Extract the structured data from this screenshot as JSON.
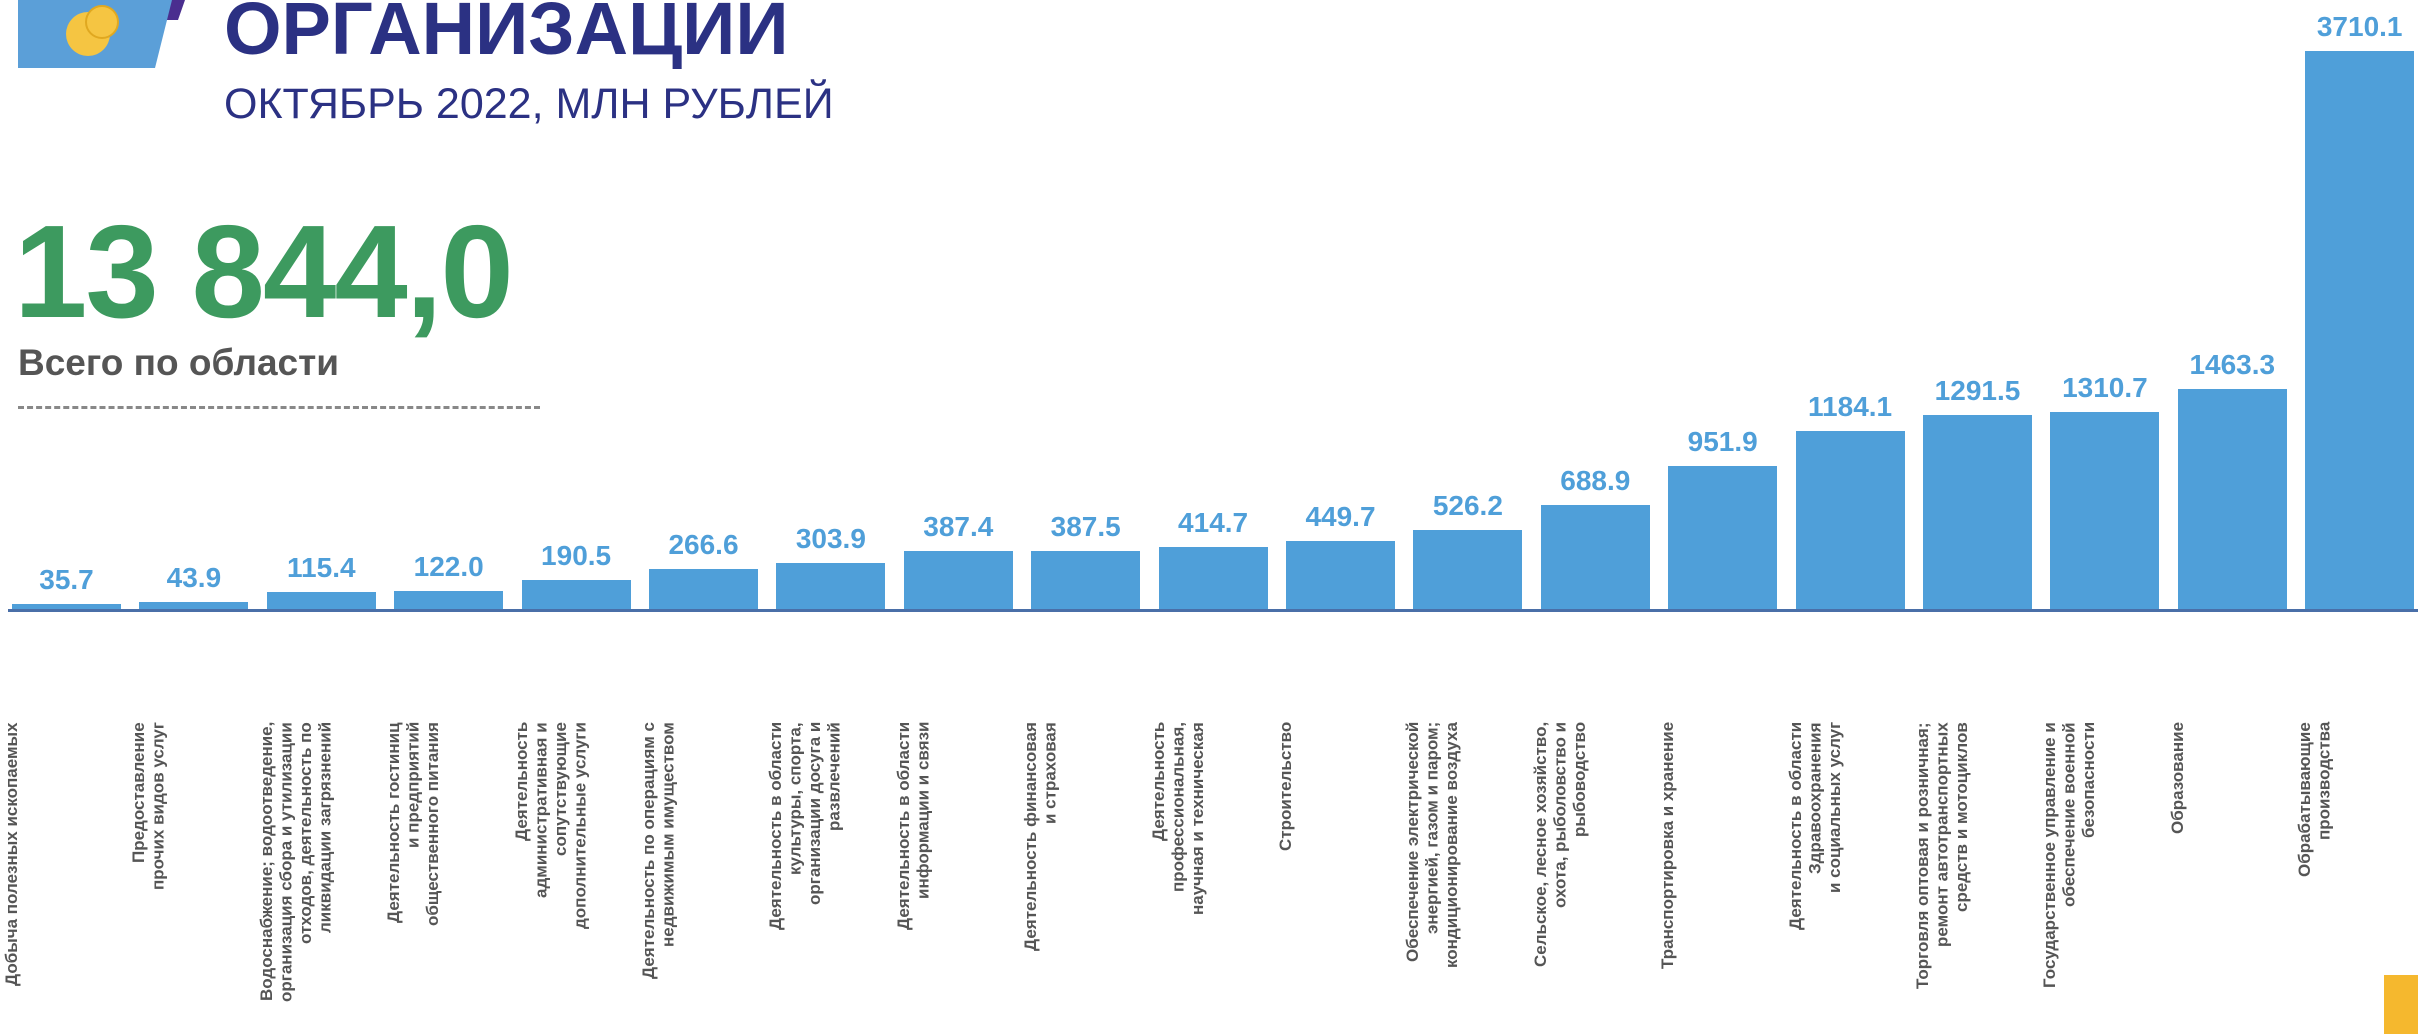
{
  "header": {
    "title": "ОРГАНИЗАЦИЙ",
    "subtitle": "ОКТЯБРЬ 2022, МЛН РУБЛЕЙ",
    "total": "13 844,0",
    "total_label": "Всего по области"
  },
  "chart_data": {
    "type": "bar",
    "color": "#4f9fd9",
    "categories": [
      "Добыча полезных ископаемых",
      "Предоставление\nпрочих видов услуг",
      "Водоснабжение; водоотведение,\nорганизация сбора и утилизации\nотходов, деятельность по\nликвидации загрязнений",
      "Деятельность гостиниц\nи предприятий\nобщественного питания",
      "Деятельность\nадминистративная и\nсопутствующие\nдополнительные услуги",
      "Деятельность по операциям с\nнедвижимым имуществом",
      "Деятельность в области\nкультуры, спорта,\nорганизации досуга и\nразвлечений",
      "Деятельность в области\nинформации и связи",
      "Деятельность финансовая\nи страховая",
      "Деятельность\nпрофессиональная,\nнаучная и техническая",
      "Строительство",
      "Обеспечение электрической\nэнергией, газом и паром;\nкондиционирование воздуха",
      "Сельское, лесное хозяйство,\nохота, рыболовство и\nрыбоводство",
      "Транспортировка и хранение",
      "Деятельность в области\nЗдравоохранения\nи социальных услуг",
      "Торговля оптовая и розничная;\nремонт автотранспортных\nсредств и мотоциклов",
      "Государственное управление и\nобеспечение военной\nбезопасности",
      "Образование",
      "Обрабатывающие\nпроизводства"
    ],
    "values": [
      35.7,
      43.9,
      115.4,
      122.0,
      190.5,
      266.6,
      303.9,
      387.4,
      387.5,
      414.7,
      449.7,
      526.2,
      688.9,
      951.9,
      1184.1,
      1291.5,
      1310.7,
      1463.3,
      3710.1
    ],
    "value_labels": [
      "35.7",
      "43.9",
      "115.4",
      "122.0",
      "190.5",
      "266.6",
      "303.9",
      "387.4",
      "387.5",
      "414.7",
      "449.7",
      "526.2",
      "688.9",
      "951.9",
      "1184.1",
      "1291.5",
      "1310.7",
      "1463.3",
      "3710.1"
    ]
  }
}
